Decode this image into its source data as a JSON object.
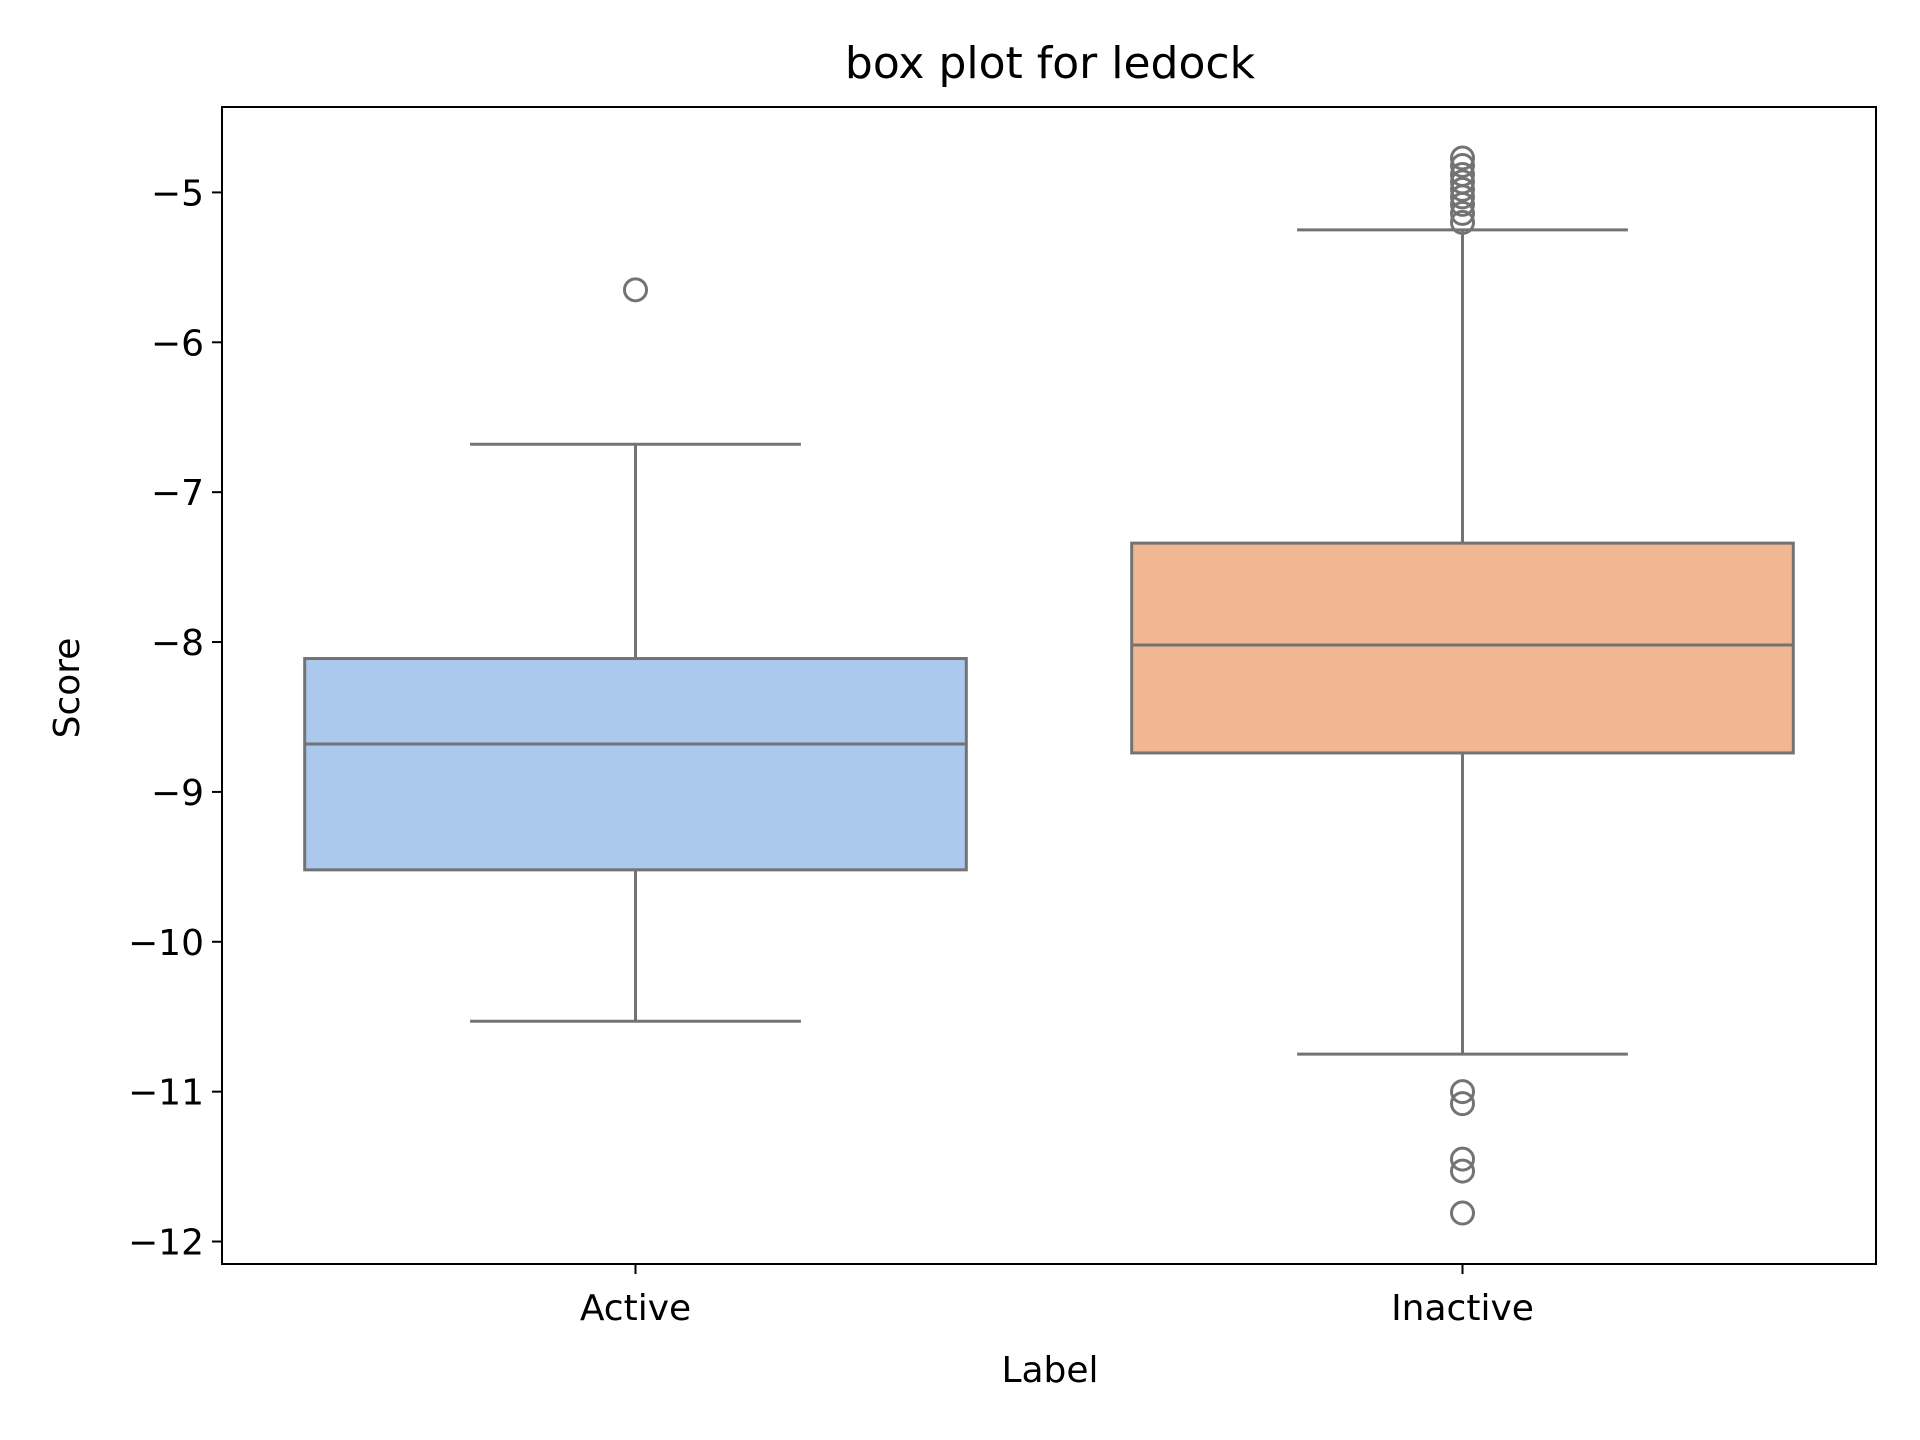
{
  "chart_data": {
    "type": "box",
    "title": "box plot for ledock",
    "xlabel": "Label",
    "ylabel": "Score",
    "ylim": [
      -12.15,
      -4.43
    ],
    "yticks": [
      -5,
      -6,
      -7,
      -8,
      -9,
      -10,
      -11,
      -12
    ],
    "ytick_labels": [
      "−5",
      "−6",
      "−7",
      "−8",
      "−9",
      "−10",
      "−11",
      "−12"
    ],
    "categories": [
      "Active",
      "Inactive"
    ],
    "boxes": [
      {
        "label": "Active",
        "color": "#abc9ec",
        "whisker_low": -10.53,
        "q1": -9.52,
        "median": -8.68,
        "q3": -8.11,
        "whisker_high": -6.68,
        "outliers": [
          -5.65
        ]
      },
      {
        "label": "Inactive",
        "color": "#f0b792",
        "whisker_low": -10.75,
        "q1": -8.74,
        "median": -8.02,
        "q3": -7.34,
        "whisker_high": -5.25,
        "outliers": [
          -4.77,
          -4.82,
          -4.88,
          -4.93,
          -4.98,
          -5.03,
          -5.08,
          -5.14,
          -5.2,
          -11.0,
          -11.08,
          -11.45,
          -11.53,
          -11.81
        ]
      }
    ],
    "line_color": "#737373",
    "grid": false,
    "legend": "none"
  }
}
